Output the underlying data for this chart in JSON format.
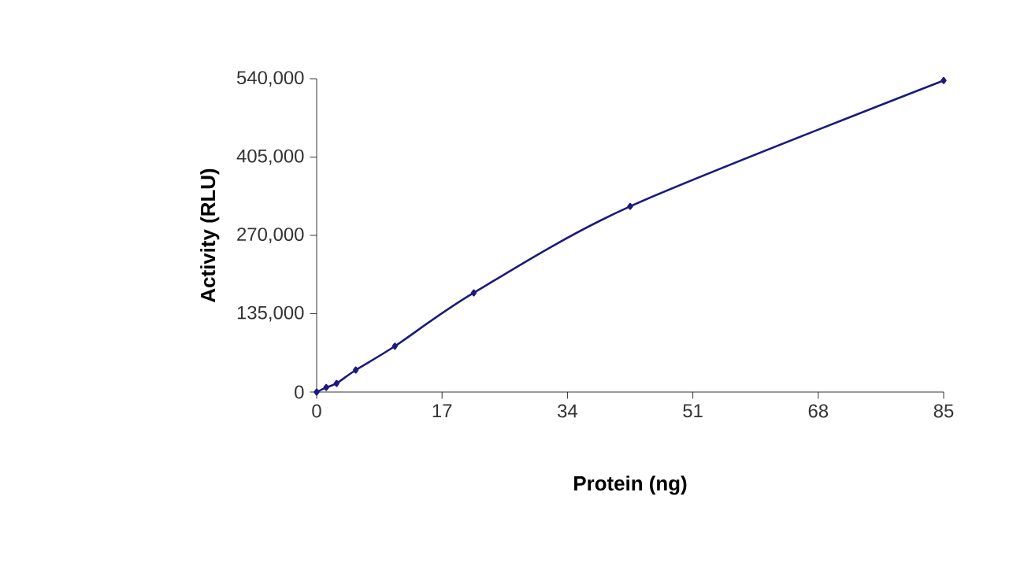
{
  "chart_data": {
    "type": "line",
    "xlabel": "Protein (ng)",
    "ylabel": "Activity (RLU)",
    "x": [
      0,
      1.3,
      2.7,
      5.3,
      10.6,
      21.3,
      42.5,
      85
    ],
    "series": [
      {
        "color": "#1a1a80",
        "values": [
          0,
          8000,
          15000,
          38000,
          79000,
          171000,
          320000,
          537000
        ]
      }
    ],
    "xlim": [
      0,
      85
    ],
    "ylim": [
      0,
      540000
    ],
    "xticks": [
      0,
      17,
      34,
      51,
      68,
      85
    ],
    "yticks": [
      {
        "value": 0,
        "label": "0"
      },
      {
        "value": 135000,
        "label": "135,000"
      },
      {
        "value": 270000,
        "label": "270,000"
      },
      {
        "value": 405000,
        "label": "405,000"
      },
      {
        "value": 540000,
        "label": "540,000"
      }
    ],
    "marker": "diamond",
    "grid": false
  }
}
